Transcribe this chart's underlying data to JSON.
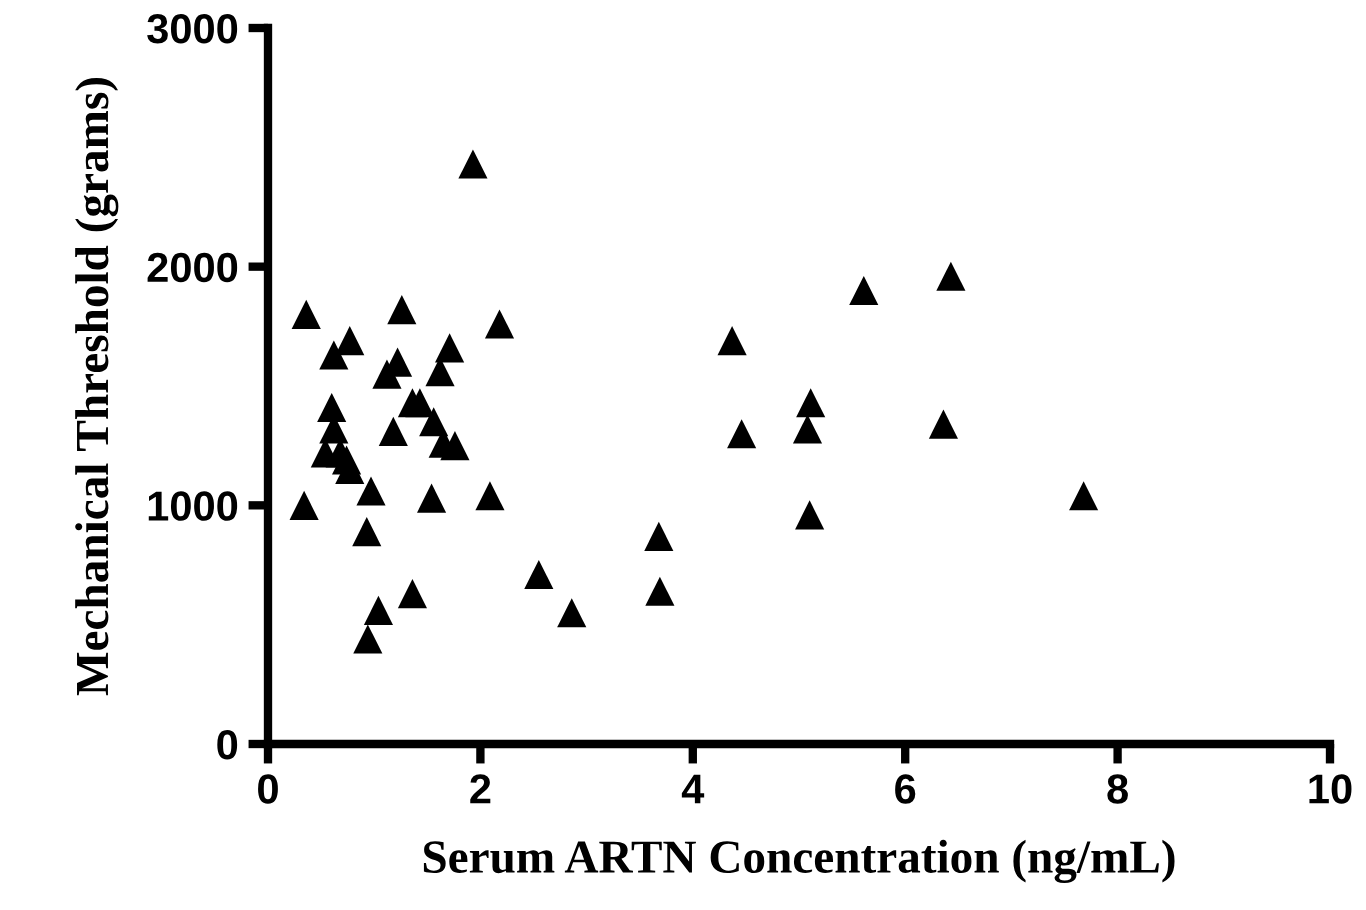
{
  "chart_data": {
    "type": "scatter",
    "xlabel": "Serum ARTN Concentration (ng/mL)",
    "ylabel": "Mechanical Threshold (grams)",
    "xlim": [
      0,
      10
    ],
    "xticks": [
      0,
      2,
      4,
      6,
      8,
      10
    ],
    "ylim": [
      0,
      3000
    ],
    "yticks": [
      0,
      1000,
      2000,
      3000
    ],
    "grid": false,
    "marker": "triangle",
    "series": [
      {
        "color": "#000000",
        "x": [
          1.93,
          0.36,
          1.26,
          2.18,
          0.77,
          0.62,
          1.71,
          1.22,
          1.12,
          1.62,
          1.36,
          1.43,
          0.6,
          1.56,
          1.18,
          0.62,
          1.65,
          1.76,
          0.54,
          0.68,
          0.74,
          0.77,
          0.97,
          0.34,
          1.54,
          2.09,
          0.93,
          2.55,
          1.36,
          1.04,
          0.94,
          2.86,
          3.68,
          3.69,
          4.37,
          4.46,
          5.11,
          5.08,
          5.1,
          5.61,
          6.43,
          6.36,
          7.68
        ],
        "values": [
          2430,
          1800,
          1820,
          1760,
          1690,
          1630,
          1660,
          1600,
          1550,
          1560,
          1430,
          1430,
          1410,
          1350,
          1310,
          1320,
          1260,
          1250,
          1220,
          1220,
          1190,
          1150,
          1060,
          1000,
          1030,
          1040,
          890,
          710,
          630,
          560,
          440,
          550,
          870,
          640,
          1690,
          1300,
          1430,
          1320,
          960,
          1900,
          1960,
          1340,
          1040
        ]
      }
    ]
  }
}
